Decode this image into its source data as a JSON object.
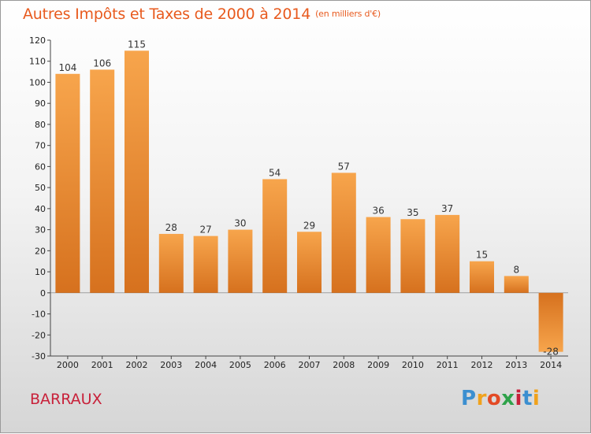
{
  "title": "Autres Impôts et Taxes de 2000 à 2014",
  "unit": "(en milliers d'€)",
  "commune": "BARRAUX",
  "logo": {
    "letters": [
      "P",
      "r",
      "o",
      "x",
      "i",
      "t",
      "i"
    ]
  },
  "colors": {
    "title": "#e85a1e",
    "commune": "#c8213a",
    "bar_light": "#f7a54c",
    "bar_dark": "#d6711e"
  },
  "chart_data": {
    "type": "bar",
    "categories": [
      "2000",
      "2001",
      "2002",
      "2003",
      "2004",
      "2005",
      "2006",
      "2007",
      "2008",
      "2009",
      "2010",
      "2011",
      "2012",
      "2013",
      "2014"
    ],
    "values": [
      104,
      106,
      115,
      28,
      27,
      30,
      54,
      29,
      57,
      36,
      35,
      37,
      15,
      8,
      -28
    ],
    "ylim": [
      -30,
      120
    ],
    "yticks": [
      -30,
      -20,
      -10,
      0,
      10,
      20,
      30,
      40,
      50,
      60,
      70,
      80,
      90,
      100,
      110,
      120
    ],
    "grid": false,
    "title": "Autres Impôts et Taxes de 2000 à 2014",
    "xlabel": "",
    "ylabel": ""
  }
}
